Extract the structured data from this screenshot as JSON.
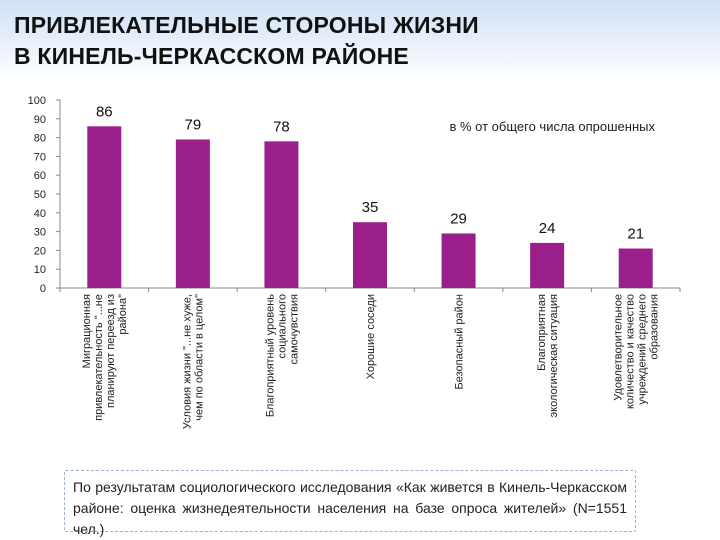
{
  "page": {
    "title_line1": "ПРИВЛЕКАТЕЛЬНЫЕ СТОРОНЫ ЖИЗНИ",
    "title_line2": "В КИНЕЛЬ-ЧЕРКАССКОМ РАЙОНЕ",
    "footnote": "По результатам социологического исследования «Как живется в Кинель-Черкасском районе: оценка жизнедеятельности населения на базе опроса жителей» (N=1551 чел.)"
  },
  "colors": {
    "bar": "#9b1f8a",
    "title_band": "#cfe1f3"
  },
  "chart_data": {
    "type": "bar",
    "title": "",
    "annotation": "в % от общего числа опрошенных",
    "xlabel": "",
    "ylabel": "",
    "ylim": [
      0,
      100
    ],
    "yticks": [
      0,
      10,
      20,
      30,
      40,
      50,
      60,
      70,
      80,
      90,
      100
    ],
    "grid": false,
    "categories": [
      "Миграционная привлекательность \"...не планируют переезд из района\"",
      "Условия жизни \"...не хуже, чем по области в целом\"",
      "Благоприятный уровень социального самочувствия",
      "Хорошие соседи",
      "Безопасный район",
      "Благоприятная экологическая ситуация",
      "Удовлетворительное количество и качество учреждений среднего образования"
    ],
    "category_lines": [
      [
        "Миграционная",
        "привлекательность \"...не",
        "планируют переезд из",
        "района\""
      ],
      [
        "Условия жизни \"...не хуже,",
        "чем по области в целом\""
      ],
      [
        "Благоприятный уровень",
        "социального",
        "самочувствия"
      ],
      [
        "Хорошие соседи"
      ],
      [
        "Безопасный район"
      ],
      [
        "Благоприятная",
        "экологическая ситуация"
      ],
      [
        "Удовлетворительное",
        "количество и качество",
        "учреждений среднего",
        "образования"
      ]
    ],
    "values": [
      86,
      79,
      78,
      35,
      29,
      24,
      21
    ],
    "value_labels": [
      "86",
      "79",
      "78",
      "35",
      "29",
      "24",
      "21"
    ]
  }
}
